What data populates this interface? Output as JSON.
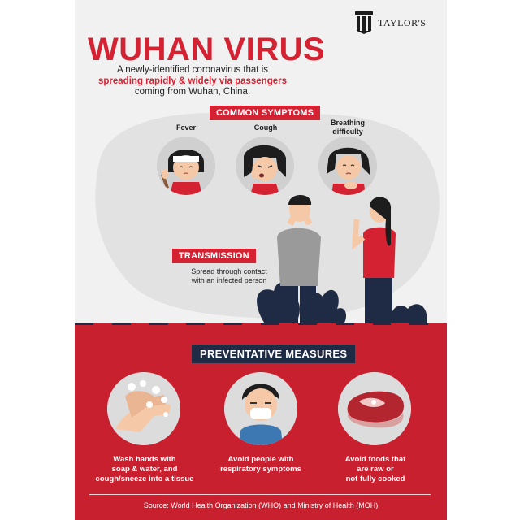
{
  "logo": {
    "text": "TAYLOR'S"
  },
  "title": "WUHAN VIRUS",
  "intro": {
    "line1": "A newly-identified coronavirus that is",
    "line2": "spreading rapidly & widely via passengers",
    "line3": "coming from Wuhan, China."
  },
  "symptoms": {
    "heading": "COMMON SYMPTOMS",
    "items": [
      {
        "label": "Fever"
      },
      {
        "label": "Cough"
      },
      {
        "label_line1": "Breathing",
        "label_line2": "difficulty"
      }
    ]
  },
  "transmission": {
    "heading": "TRANSMISSION",
    "line1": "Spread through contact",
    "line2": "with an infected person"
  },
  "preventative": {
    "heading": "PREVENTATIVE MEASURES",
    "items": [
      {
        "line1": "Wash hands with",
        "line2": "soap & water, and",
        "line3": "cough/sneeze into a tissue"
      },
      {
        "line1": "Avoid people with",
        "line2": "respiratory symptoms"
      },
      {
        "line1": "Avoid foods that",
        "line2": "are raw or",
        "line3": "not fully cooked"
      }
    ]
  },
  "source": "Source: World Health Organization (WHO) and Ministry of Health (MOH)",
  "colors": {
    "red": "#d52232",
    "navy": "#1f2a44",
    "grey": "#f1f1f1"
  }
}
